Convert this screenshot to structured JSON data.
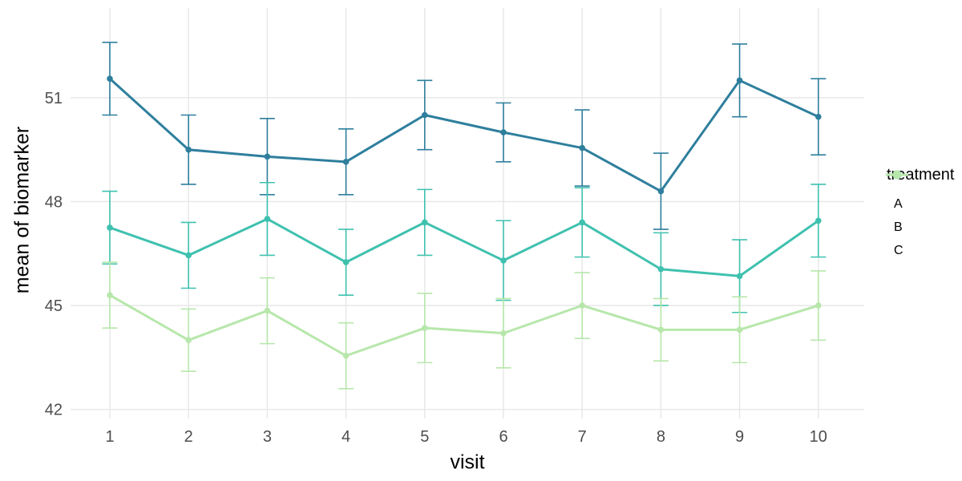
{
  "chart_data": {
    "type": "line",
    "title": "",
    "xlabel": "visit",
    "ylabel": "mean of biomarker",
    "x": [
      1,
      2,
      3,
      4,
      5,
      6,
      7,
      8,
      9,
      10
    ],
    "x_tick_labels": [
      "1",
      "2",
      "3",
      "4",
      "5",
      "6",
      "7",
      "8",
      "9",
      "10"
    ],
    "y_ticks": [
      42,
      45,
      48,
      51
    ],
    "ylim": [
      41.7,
      53.6
    ],
    "grid": "major-only",
    "error_bars": true,
    "series": [
      {
        "name": "A",
        "color": "#2e7f9d",
        "values": [
          51.55,
          49.5,
          49.3,
          49.15,
          50.5,
          50.0,
          49.55,
          48.3,
          51.5,
          50.45
        ],
        "errors": [
          1.05,
          1.0,
          1.1,
          0.95,
          1.0,
          0.85,
          1.1,
          1.1,
          1.05,
          1.1
        ]
      },
      {
        "name": "B",
        "color": "#3fc1af",
        "values": [
          47.25,
          46.45,
          47.5,
          46.25,
          47.4,
          46.3,
          47.4,
          46.05,
          45.85,
          47.45
        ],
        "errors": [
          1.05,
          0.95,
          1.05,
          0.95,
          0.95,
          1.15,
          1.0,
          1.05,
          1.05,
          1.05
        ]
      },
      {
        "name": "C",
        "color": "#b7e7ab",
        "values": [
          45.3,
          44.0,
          44.85,
          43.55,
          44.35,
          44.2,
          45.0,
          44.3,
          44.3,
          45.0
        ],
        "errors": [
          0.95,
          0.9,
          0.95,
          0.95,
          1.0,
          1.0,
          0.95,
          0.9,
          0.95,
          1.0
        ]
      }
    ],
    "legend": {
      "title": "treatment",
      "position": "right",
      "entries": [
        "A",
        "B",
        "C"
      ]
    },
    "style": {
      "background": "#ffffff",
      "gridline_color": "#e8e8e8",
      "tick_label_color": "#4d4d4d",
      "axis_title_color": "#000000"
    }
  }
}
